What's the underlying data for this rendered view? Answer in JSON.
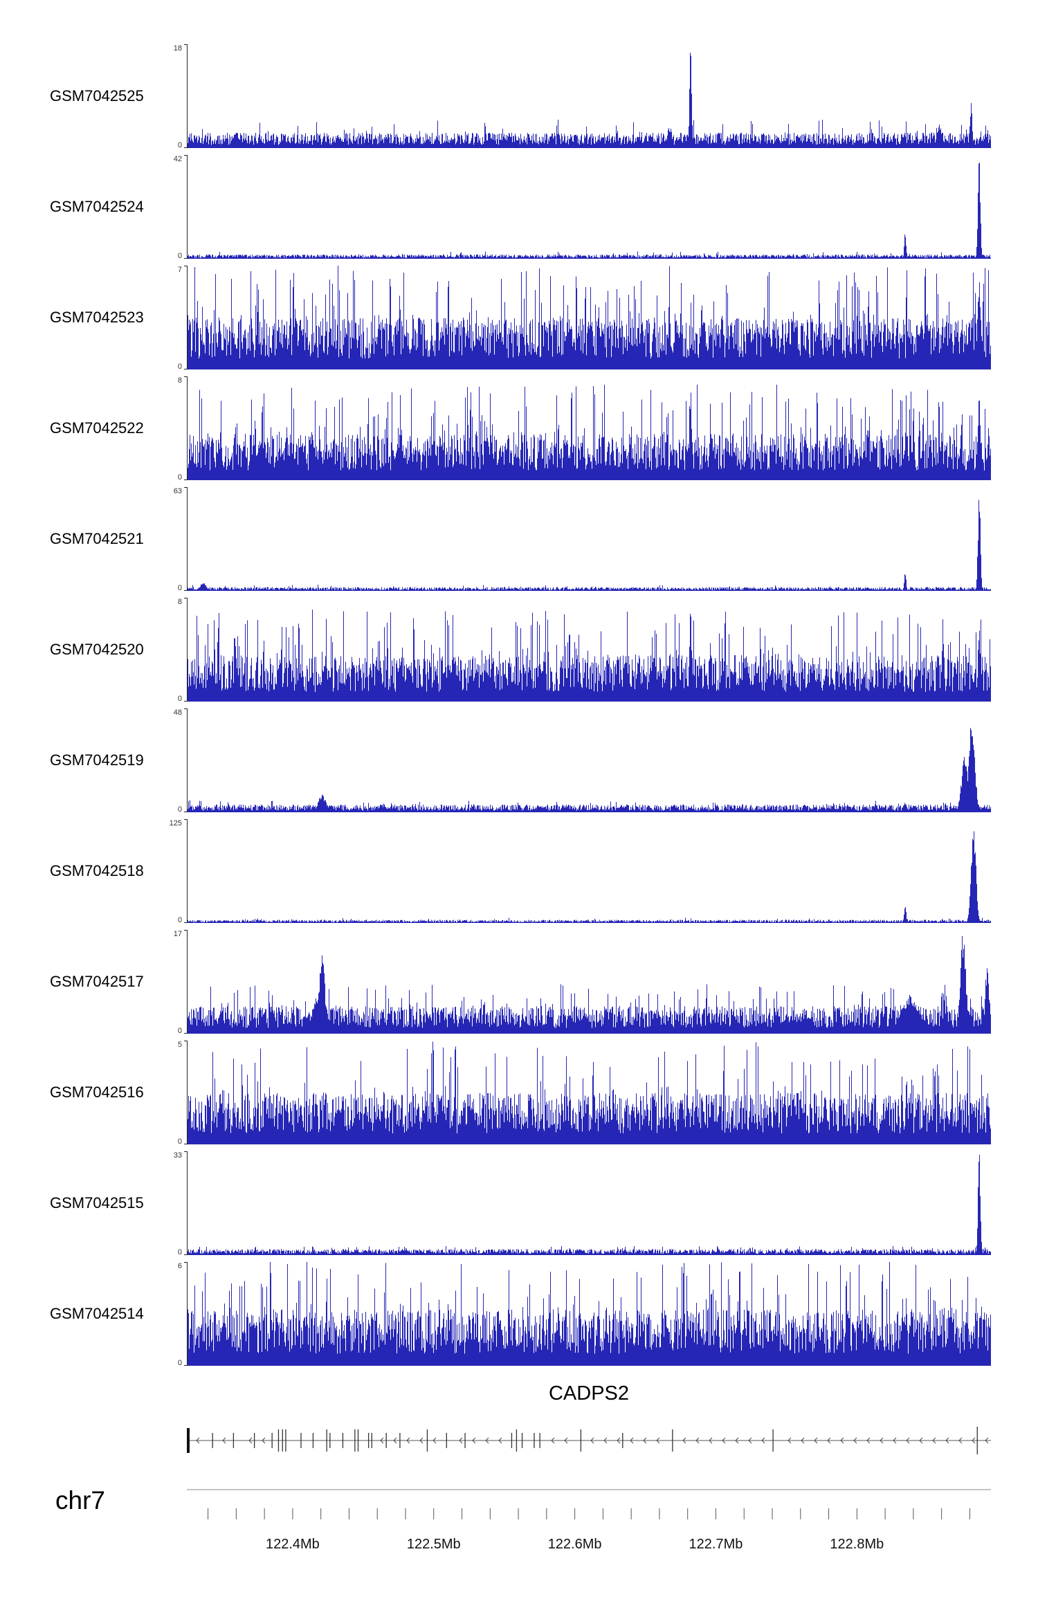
{
  "page": {
    "background": "#ffffff"
  },
  "chart_data": {
    "type": "bar",
    "description": "Genome browser read-coverage tracks (12 GEO samples) over the CADPS2 locus on chr7, approx 122.325-122.895 Mb",
    "bar_color": "#2626b6",
    "y_zero_label": "0",
    "region": {
      "chrom": "chr7",
      "start_mb": 122.325,
      "end_mb": 122.895
    },
    "x_axis": {
      "minor_tick_start_mb": 122.34,
      "minor_tick_end_mb": 122.88,
      "minor_tick_interval_mb": 0.02,
      "ticks": [
        {
          "mb": 122.4,
          "label": "122.4Mb"
        },
        {
          "mb": 122.5,
          "label": "122.5Mb"
        },
        {
          "mb": 122.6,
          "label": "122.6Mb"
        },
        {
          "mb": 122.7,
          "label": "122.7Mb"
        },
        {
          "mb": 122.8,
          "label": "122.8Mb"
        }
      ]
    },
    "gene_track": {
      "title": "CADPS2",
      "strand": "-",
      "exons": [
        [
          0.0,
          18
        ],
        [
          0.032,
          11
        ],
        [
          0.058,
          11
        ],
        [
          0.084,
          11
        ],
        [
          0.106,
          11
        ],
        [
          0.114,
          16
        ],
        [
          0.119,
          16
        ],
        [
          0.123,
          16
        ],
        [
          0.142,
          11
        ],
        [
          0.157,
          11
        ],
        [
          0.174,
          16
        ],
        [
          0.178,
          11
        ],
        [
          0.194,
          11
        ],
        [
          0.209,
          16
        ],
        [
          0.213,
          16
        ],
        [
          0.226,
          11
        ],
        [
          0.23,
          11
        ],
        [
          0.248,
          11
        ],
        [
          0.265,
          11
        ],
        [
          0.299,
          16
        ],
        [
          0.323,
          11
        ],
        [
          0.346,
          11
        ],
        [
          0.404,
          11
        ],
        [
          0.41,
          16
        ],
        [
          0.417,
          11
        ],
        [
          0.432,
          11
        ],
        [
          0.439,
          11
        ],
        [
          0.49,
          16
        ],
        [
          0.542,
          11
        ],
        [
          0.604,
          16
        ],
        [
          0.729,
          16
        ],
        [
          0.983,
          20
        ]
      ]
    },
    "tracks": [
      {
        "label": "GSM7042525",
        "ymax": 18,
        "render": {
          "seed": 1,
          "base": 0.09,
          "spike_prob": 0.1,
          "spike_max": 0.28
        },
        "peaks": [
          {
            "pos": 0.626,
            "h": 1.0,
            "w": 0.0013
          },
          {
            "pos": 0.6,
            "h": 0.22,
            "w": 0.003
          },
          {
            "pos": 0.935,
            "h": 0.25,
            "w": 0.003
          },
          {
            "pos": 0.975,
            "h": 0.45,
            "w": 0.0015
          }
        ]
      },
      {
        "label": "GSM7042524",
        "ymax": 42,
        "render": {
          "seed": 2,
          "base": 0.025,
          "spike_prob": 0.08,
          "spike_max": 0.07
        },
        "peaks": [
          {
            "pos": 0.893,
            "h": 0.27,
            "w": 0.0012
          },
          {
            "pos": 0.985,
            "h": 1.0,
            "w": 0.0015
          }
        ]
      },
      {
        "label": "GSM7042523",
        "ymax": 7,
        "render": {
          "seed": 3,
          "base": 0.3,
          "spike_prob": 0.3,
          "spike_max": 1.0
        },
        "peaks": [
          {
            "pos": 0.985,
            "h": 1.0,
            "w": 0.002
          }
        ]
      },
      {
        "label": "GSM7042522",
        "ymax": 8,
        "render": {
          "seed": 4,
          "base": 0.27,
          "spike_prob": 0.26,
          "spike_max": 0.92
        },
        "peaks": [
          {
            "pos": 0.626,
            "h": 1.0,
            "w": 0.0015
          },
          {
            "pos": 0.985,
            "h": 0.95,
            "w": 0.0015
          }
        ]
      },
      {
        "label": "GSM7042521",
        "ymax": 63,
        "render": {
          "seed": 5,
          "base": 0.022,
          "spike_prob": 0.08,
          "spike_max": 0.06
        },
        "peaks": [
          {
            "pos": 0.893,
            "h": 0.2,
            "w": 0.0012
          },
          {
            "pos": 0.985,
            "h": 1.0,
            "w": 0.0015
          },
          {
            "pos": 0.02,
            "h": 0.08,
            "w": 0.004
          }
        ]
      },
      {
        "label": "GSM7042520",
        "ymax": 8,
        "render": {
          "seed": 6,
          "base": 0.27,
          "spike_prob": 0.26,
          "spike_max": 0.9
        },
        "peaks": [
          {
            "pos": 0.626,
            "h": 1.0,
            "w": 0.0015
          },
          {
            "pos": 0.94,
            "h": 0.85,
            "w": 0.0015
          },
          {
            "pos": 0.985,
            "h": 0.8,
            "w": 0.0015
          }
        ]
      },
      {
        "label": "GSM7042519",
        "ymax": 48,
        "render": {
          "seed": 7,
          "base": 0.045,
          "spike_prob": 0.1,
          "spike_max": 0.12
        },
        "peaks": [
          {
            "pos": 0.168,
            "h": 0.17,
            "w": 0.005
          },
          {
            "pos": 0.893,
            "h": 0.1,
            "w": 0.002
          },
          {
            "pos": 0.967,
            "h": 0.55,
            "w": 0.004
          },
          {
            "pos": 0.976,
            "h": 1.0,
            "w": 0.0035
          }
        ]
      },
      {
        "label": "GSM7042518",
        "ymax": 125,
        "render": {
          "seed": 8,
          "base": 0.018,
          "spike_prob": 0.08,
          "spike_max": 0.05
        },
        "peaks": [
          {
            "pos": 0.893,
            "h": 0.16,
            "w": 0.0013
          },
          {
            "pos": 0.978,
            "h": 1.0,
            "w": 0.003
          }
        ]
      },
      {
        "label": "GSM7042517",
        "ymax": 17,
        "render": {
          "seed": 9,
          "base": 0.16,
          "spike_prob": 0.18,
          "spike_max": 0.48
        },
        "peaks": [
          {
            "pos": 0.168,
            "h": 0.9,
            "w": 0.003
          },
          {
            "pos": 0.165,
            "h": 0.45,
            "w": 0.008
          },
          {
            "pos": 0.9,
            "h": 0.38,
            "w": 0.012
          },
          {
            "pos": 0.965,
            "h": 1.0,
            "w": 0.0035
          },
          {
            "pos": 0.995,
            "h": 0.72,
            "w": 0.0025
          }
        ]
      },
      {
        "label": "GSM7042516",
        "ymax": 5,
        "render": {
          "seed": 10,
          "base": 0.3,
          "spike_prob": 0.2,
          "spike_max": 1.0
        },
        "peaks": [
          {
            "pos": 0.93,
            "h": 1.0,
            "w": 0.001
          }
        ]
      },
      {
        "label": "GSM7042515",
        "ymax": 33,
        "render": {
          "seed": 11,
          "base": 0.035,
          "spike_prob": 0.1,
          "spike_max": 0.09
        },
        "peaks": [
          {
            "pos": 0.985,
            "h": 1.0,
            "w": 0.0015
          },
          {
            "pos": 0.27,
            "h": 0.06,
            "w": 0.006
          }
        ]
      },
      {
        "label": "GSM7042514",
        "ymax": 6,
        "render": {
          "seed": 12,
          "base": 0.33,
          "spike_prob": 0.22,
          "spike_max": 1.0
        },
        "peaks": [
          {
            "pos": 0.4,
            "h": 1.0,
            "w": 0.0008
          }
        ]
      }
    ]
  }
}
